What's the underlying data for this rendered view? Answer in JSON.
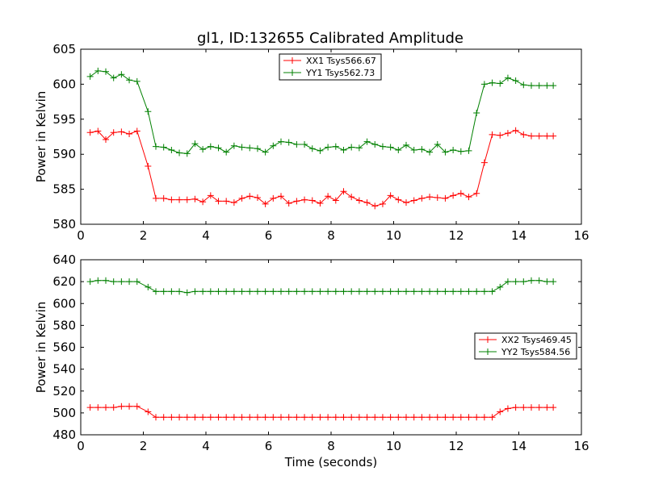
{
  "figure": {
    "title": "gl1, ID:132655 Calibrated Amplitude"
  },
  "chart_data": [
    {
      "type": "line",
      "title": "gl1, ID:132655 Calibrated Amplitude",
      "xlabel": "",
      "ylabel": "Power in Kelvin",
      "xlim": [
        0,
        16
      ],
      "ylim": [
        580,
        605
      ],
      "xticks": [
        "0",
        "2",
        "4",
        "6",
        "8",
        "10",
        "12",
        "14",
        "16"
      ],
      "yticks": [
        "580",
        "585",
        "590",
        "595",
        "600",
        "605"
      ],
      "grid": false,
      "legend_position": "top-center",
      "series": [
        {
          "name": "XX1 Tsys566.67",
          "color": "#ff0000",
          "x": [
            0.3,
            0.55,
            0.8,
            1.05,
            1.3,
            1.55,
            1.8,
            2.15,
            2.4,
            2.65,
            2.9,
            3.15,
            3.4,
            3.65,
            3.9,
            4.15,
            4.4,
            4.65,
            4.9,
            5.15,
            5.4,
            5.65,
            5.9,
            6.15,
            6.4,
            6.65,
            6.9,
            7.15,
            7.4,
            7.65,
            7.9,
            8.15,
            8.4,
            8.65,
            8.9,
            9.15,
            9.4,
            9.65,
            9.9,
            10.15,
            10.4,
            10.65,
            10.9,
            11.15,
            11.4,
            11.65,
            11.9,
            12.15,
            12.4,
            12.65,
            12.9,
            13.15,
            13.4,
            13.65,
            13.9,
            14.15,
            14.4,
            14.65,
            14.9,
            15.1
          ],
          "y": [
            593.1,
            593.3,
            592.1,
            593.1,
            593.2,
            592.9,
            593.3,
            588.3,
            583.7,
            583.7,
            583.5,
            583.5,
            583.5,
            583.6,
            583.2,
            584.1,
            583.3,
            583.3,
            583.1,
            583.7,
            584.0,
            583.8,
            582.9,
            583.7,
            584.0,
            583.0,
            583.3,
            583.5,
            583.4,
            583.0,
            584.0,
            583.4,
            584.7,
            583.9,
            583.4,
            583.1,
            582.6,
            582.9,
            584.1,
            583.5,
            583.1,
            583.4,
            583.7,
            583.9,
            583.8,
            583.7,
            584.1,
            584.4,
            583.9,
            584.4,
            588.8,
            592.8,
            592.7,
            593.0,
            593.4,
            592.8,
            592.6,
            592.6,
            592.6,
            592.6
          ]
        },
        {
          "name": "YY1 Tsys562.73",
          "color": "#008000",
          "x": [
            0.3,
            0.55,
            0.8,
            1.05,
            1.3,
            1.55,
            1.8,
            2.15,
            2.4,
            2.65,
            2.9,
            3.15,
            3.4,
            3.65,
            3.9,
            4.15,
            4.4,
            4.65,
            4.9,
            5.15,
            5.4,
            5.65,
            5.9,
            6.15,
            6.4,
            6.65,
            6.9,
            7.15,
            7.4,
            7.65,
            7.9,
            8.15,
            8.4,
            8.65,
            8.9,
            9.15,
            9.4,
            9.65,
            9.9,
            10.15,
            10.4,
            10.65,
            10.9,
            11.15,
            11.4,
            11.65,
            11.9,
            12.15,
            12.4,
            12.65,
            12.9,
            13.15,
            13.4,
            13.65,
            13.9,
            14.15,
            14.4,
            14.65,
            14.9,
            15.1
          ],
          "y": [
            601.1,
            601.9,
            601.8,
            600.9,
            601.4,
            600.6,
            600.4,
            596.1,
            591.1,
            591.0,
            590.6,
            590.2,
            590.1,
            591.5,
            590.7,
            591.1,
            590.9,
            590.3,
            591.2,
            591.0,
            590.9,
            590.8,
            590.3,
            591.2,
            591.8,
            591.7,
            591.4,
            591.4,
            590.8,
            590.5,
            591.0,
            591.1,
            590.6,
            591.0,
            590.9,
            591.8,
            591.4,
            591.1,
            591.0,
            590.6,
            591.3,
            590.6,
            590.7,
            590.3,
            591.4,
            590.3,
            590.6,
            590.4,
            590.5,
            595.9,
            600.0,
            600.2,
            600.1,
            600.9,
            600.5,
            599.9,
            599.8,
            599.8,
            599.8,
            599.8
          ]
        }
      ]
    },
    {
      "type": "line",
      "title": "",
      "xlabel": "Time (seconds)",
      "ylabel": "Power in Kelvin",
      "xlim": [
        0,
        16
      ],
      "ylim": [
        480,
        640
      ],
      "xticks": [
        "0",
        "2",
        "4",
        "6",
        "8",
        "10",
        "12",
        "14",
        "16"
      ],
      "yticks": [
        "480",
        "500",
        "520",
        "540",
        "560",
        "580",
        "600",
        "620",
        "640"
      ],
      "grid": false,
      "legend_position": "right",
      "series": [
        {
          "name": "XX2 Tsys469.45",
          "color": "#ff0000",
          "x": [
            0.3,
            0.55,
            0.8,
            1.05,
            1.3,
            1.55,
            1.8,
            2.15,
            2.4,
            2.65,
            2.9,
            3.15,
            3.4,
            3.65,
            3.9,
            4.15,
            4.4,
            4.65,
            4.9,
            5.15,
            5.4,
            5.65,
            5.9,
            6.15,
            6.4,
            6.65,
            6.9,
            7.15,
            7.4,
            7.65,
            7.9,
            8.15,
            8.4,
            8.65,
            8.9,
            9.15,
            9.4,
            9.65,
            9.9,
            10.15,
            10.4,
            10.65,
            10.9,
            11.15,
            11.4,
            11.65,
            11.9,
            12.15,
            12.4,
            12.65,
            12.9,
            13.15,
            13.4,
            13.65,
            13.9,
            14.15,
            14.4,
            14.65,
            14.9,
            15.1
          ],
          "y": [
            505,
            505,
            505,
            505,
            506,
            506,
            506,
            501,
            496,
            496,
            496,
            496,
            496,
            496,
            496,
            496,
            496,
            496,
            496,
            496,
            496,
            496,
            496,
            496,
            496,
            496,
            496,
            496,
            496,
            496,
            496,
            496,
            496,
            496,
            496,
            496,
            496,
            496,
            496,
            496,
            496,
            496,
            496,
            496,
            496,
            496,
            496,
            496,
            496,
            496,
            496,
            496,
            501,
            504,
            505,
            505,
            505,
            505,
            505,
            505
          ]
        },
        {
          "name": "YY2 Tsys584.56",
          "color": "#008000",
          "x": [
            0.3,
            0.55,
            0.8,
            1.05,
            1.3,
            1.55,
            1.8,
            2.15,
            2.4,
            2.65,
            2.9,
            3.15,
            3.4,
            3.65,
            3.9,
            4.15,
            4.4,
            4.65,
            4.9,
            5.15,
            5.4,
            5.65,
            5.9,
            6.15,
            6.4,
            6.65,
            6.9,
            7.15,
            7.4,
            7.65,
            7.9,
            8.15,
            8.4,
            8.65,
            8.9,
            9.15,
            9.4,
            9.65,
            9.9,
            10.15,
            10.4,
            10.65,
            10.9,
            11.15,
            11.4,
            11.65,
            11.9,
            12.15,
            12.4,
            12.65,
            12.9,
            13.15,
            13.4,
            13.65,
            13.9,
            14.15,
            14.4,
            14.65,
            14.9,
            15.1
          ],
          "y": [
            620,
            621,
            621,
            620,
            620,
            620,
            620,
            615,
            611,
            611,
            611,
            611,
            610,
            611,
            611,
            611,
            611,
            611,
            611,
            611,
            611,
            611,
            611,
            611,
            611,
            611,
            611,
            611,
            611,
            611,
            611,
            611,
            611,
            611,
            611,
            611,
            611,
            611,
            611,
            611,
            611,
            611,
            611,
            611,
            611,
            611,
            611,
            611,
            611,
            611,
            611,
            611,
            615,
            620,
            620,
            620,
            621,
            621,
            620,
            620
          ]
        }
      ]
    }
  ]
}
